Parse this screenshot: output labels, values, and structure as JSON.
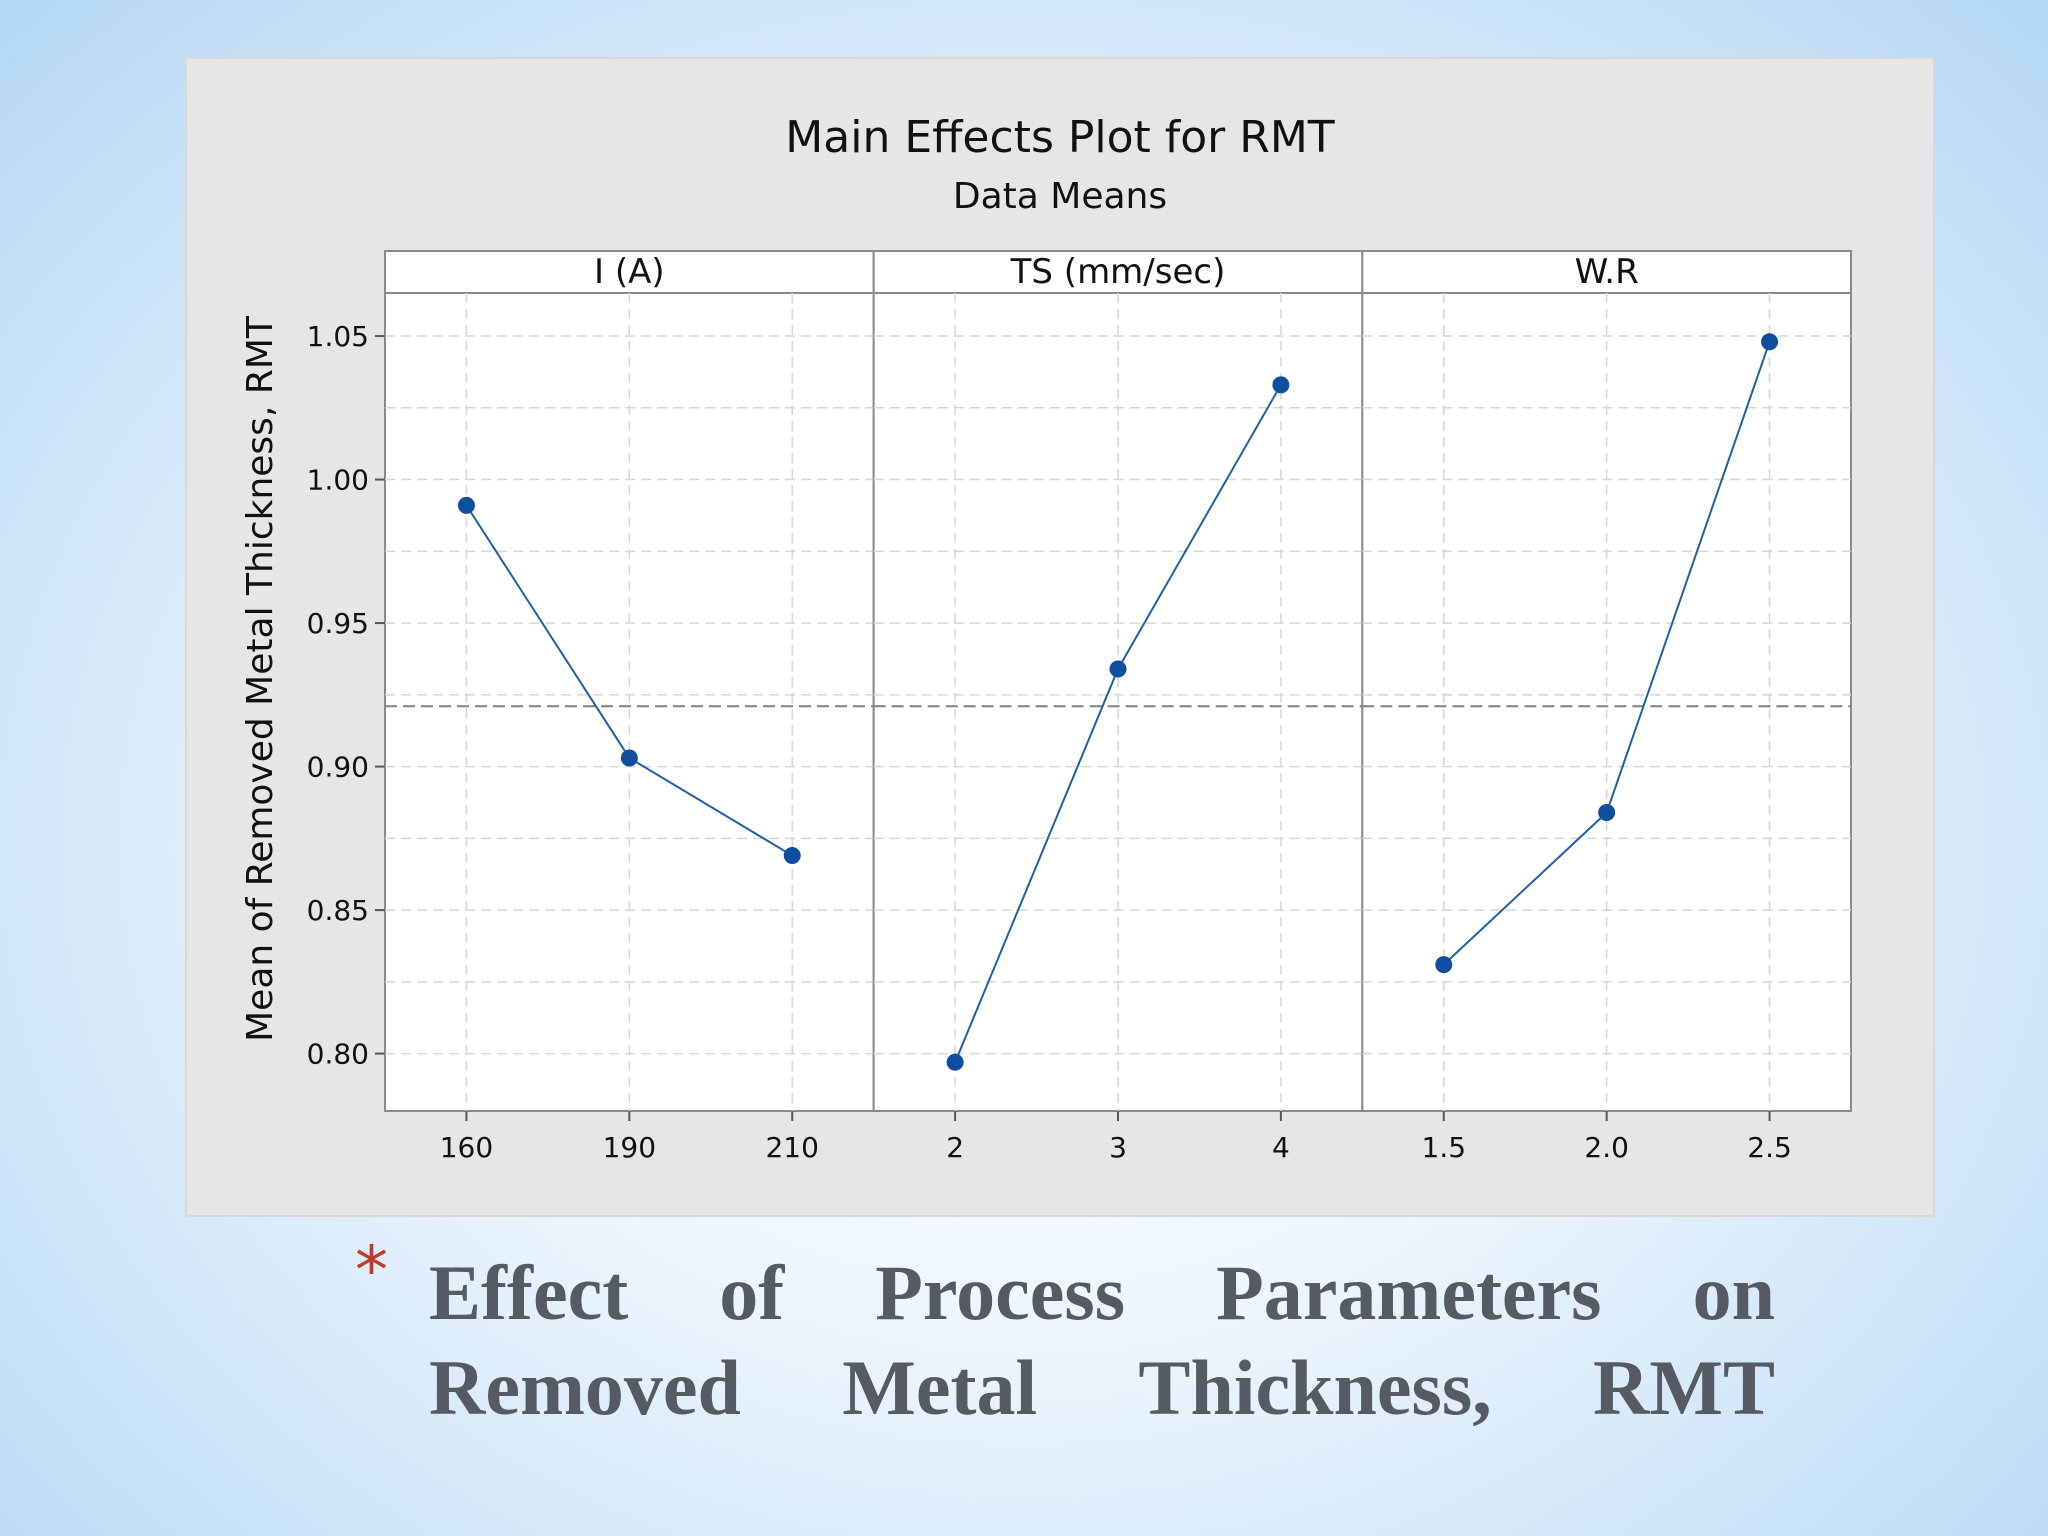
{
  "chart_data": {
    "type": "line",
    "title": "Main Effects Plot for RMT",
    "subtitle": "Data Means",
    "ylabel": "Mean of Removed Metal Thickness, RMT",
    "ylim": [
      0.78,
      1.065
    ],
    "yticks": [
      "0.80",
      "0.85",
      "0.90",
      "0.95",
      "1.00",
      "1.05"
    ],
    "reference_mean": 0.921,
    "grid": true,
    "colors": {
      "line": "#1f5fa8",
      "marker": "#0d4f9e",
      "reference": "#808080",
      "panel_bg": "#ffffff",
      "outer_bg": "#e6e6e6"
    },
    "panels": [
      {
        "label": "I (A)",
        "x": [
          "160",
          "190",
          "210"
        ],
        "values": [
          0.991,
          0.903,
          0.869
        ]
      },
      {
        "label": "TS (mm/sec)",
        "x": [
          "2",
          "3",
          "4"
        ],
        "values": [
          0.797,
          0.934,
          1.033
        ]
      },
      {
        "label": "W.R",
        "x": [
          "1.5",
          "2.0",
          "2.5"
        ],
        "values": [
          0.831,
          0.884,
          1.048
        ]
      }
    ]
  },
  "caption": {
    "bullet": "*",
    "line1": [
      "Effect",
      "of",
      "Process",
      "Parameters",
      "on"
    ],
    "line2": [
      "Removed",
      "Metal",
      "Thickness,",
      "RMT"
    ]
  }
}
